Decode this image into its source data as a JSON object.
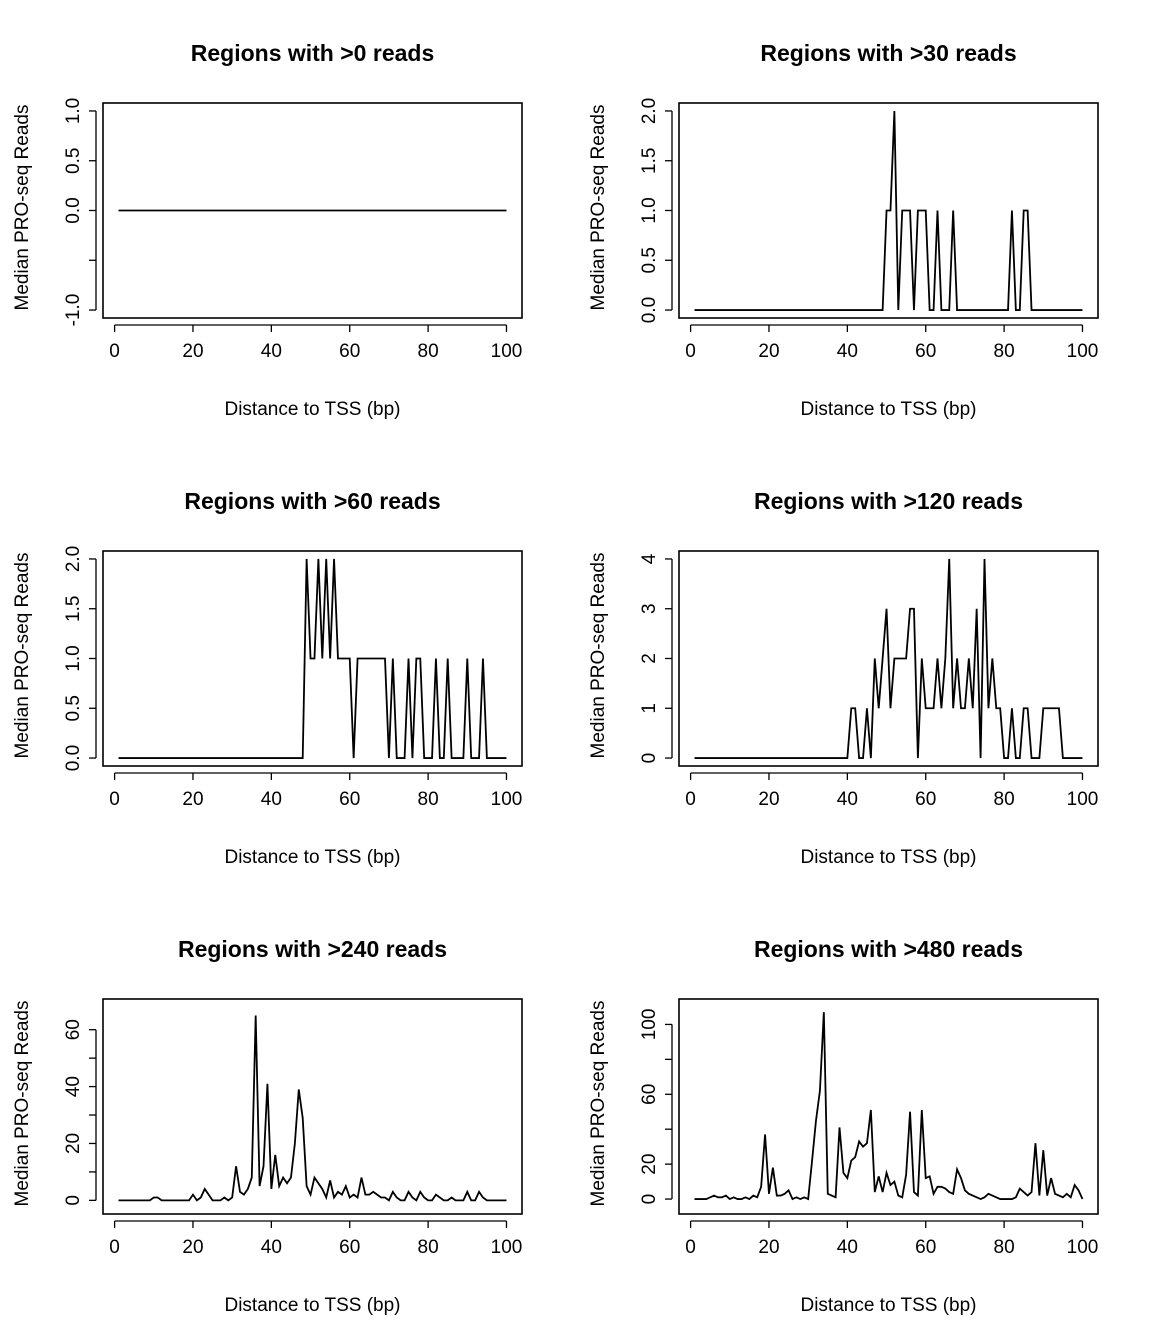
{
  "chart_data": [
    {
      "type": "line",
      "title": "Regions with >0 reads",
      "xlabel": "Distance to TSS (bp)",
      "ylabel": "Median PRO-seq Reads",
      "xlim": [
        1,
        100
      ],
      "ylim": [
        -1,
        1
      ],
      "xticks": [
        0,
        20,
        40,
        60,
        80,
        100
      ],
      "xtick_labels": [
        "0",
        "20",
        "40",
        "60",
        "80",
        "100"
      ],
      "yticks": [
        -1,
        -0.5,
        0,
        0.5,
        1
      ],
      "ytick_labels": [
        "-1.0",
        "",
        "0.0",
        "0.5",
        "1.0"
      ],
      "series": [
        {
          "x": [
            1,
            100
          ],
          "y": [
            0,
            0
          ]
        }
      ]
    },
    {
      "type": "line",
      "title": "Regions with >30 reads",
      "xlabel": "Distance to TSS (bp)",
      "ylabel": "Median PRO-seq Reads",
      "xlim": [
        1,
        100
      ],
      "ylim": [
        0,
        2
      ],
      "xticks": [
        0,
        20,
        40,
        60,
        80,
        100
      ],
      "xtick_labels": [
        "0",
        "20",
        "40",
        "60",
        "80",
        "100"
      ],
      "yticks": [
        0,
        0.5,
        1,
        1.5,
        2
      ],
      "ytick_labels": [
        "0.0",
        "0.5",
        "1.0",
        "1.5",
        "2.0"
      ],
      "series": [
        {
          "x": [
            1,
            49,
            50,
            51,
            52,
            53,
            54,
            55,
            56,
            57,
            58,
            59,
            60,
            61,
            62,
            63,
            64,
            65,
            66,
            67,
            68,
            81,
            82,
            83,
            84,
            85,
            86,
            87,
            100
          ],
          "y": [
            0,
            0,
            1,
            1,
            2,
            0,
            1,
            1,
            1,
            0,
            1,
            1,
            1,
            0,
            0,
            1,
            0,
            0,
            0,
            1,
            0,
            0,
            1,
            0,
            0,
            1,
            1,
            0,
            0
          ]
        }
      ]
    },
    {
      "type": "line",
      "title": "Regions with >60 reads",
      "xlabel": "Distance to TSS (bp)",
      "ylabel": "Median PRO-seq Reads",
      "xlim": [
        1,
        100
      ],
      "ylim": [
        0,
        2
      ],
      "xticks": [
        0,
        20,
        40,
        60,
        80,
        100
      ],
      "xtick_labels": [
        "0",
        "20",
        "40",
        "60",
        "80",
        "100"
      ],
      "yticks": [
        0,
        0.5,
        1,
        1.5,
        2
      ],
      "ytick_labels": [
        "0.0",
        "0.5",
        "1.0",
        "1.5",
        "2.0"
      ],
      "series": [
        {
          "x": [
            1,
            48,
            49,
            50,
            51,
            52,
            53,
            54,
            55,
            56,
            57,
            58,
            59,
            60,
            61,
            62,
            63,
            64,
            65,
            66,
            67,
            68,
            69,
            70,
            71,
            72,
            73,
            74,
            75,
            76,
            77,
            78,
            79,
            80,
            81,
            82,
            83,
            84,
            85,
            86,
            87,
            88,
            89,
            90,
            91,
            92,
            93,
            94,
            95,
            96,
            100
          ],
          "y": [
            0,
            0,
            2,
            1,
            1,
            2,
            1,
            2,
            1,
            2,
            1,
            1,
            1,
            1,
            0,
            1,
            1,
            1,
            1,
            1,
            1,
            1,
            1,
            0,
            1,
            0,
            0,
            0,
            1,
            0,
            1,
            1,
            0,
            0,
            0,
            1,
            0,
            0,
            1,
            0,
            0,
            0,
            0,
            1,
            0,
            0,
            0,
            1,
            0,
            0,
            0
          ]
        }
      ]
    },
    {
      "type": "line",
      "title": "Regions with >120 reads",
      "xlabel": "Distance to TSS (bp)",
      "ylabel": "Median PRO-seq Reads",
      "xlim": [
        1,
        100
      ],
      "ylim": [
        0,
        4
      ],
      "xticks": [
        0,
        20,
        40,
        60,
        80,
        100
      ],
      "xtick_labels": [
        "0",
        "20",
        "40",
        "60",
        "80",
        "100"
      ],
      "yticks": [
        0,
        1,
        2,
        3,
        4
      ],
      "ytick_labels": [
        "0",
        "1",
        "2",
        "3",
        "4"
      ],
      "series": [
        {
          "x": [
            1,
            40,
            41,
            42,
            43,
            44,
            45,
            46,
            47,
            48,
            49,
            50,
            51,
            52,
            53,
            54,
            55,
            56,
            57,
            58,
            59,
            60,
            61,
            62,
            63,
            64,
            65,
            66,
            67,
            68,
            69,
            70,
            71,
            72,
            73,
            74,
            75,
            76,
            77,
            78,
            79,
            80,
            81,
            82,
            83,
            84,
            85,
            86,
            87,
            88,
            89,
            90,
            91,
            92,
            93,
            94,
            95,
            100
          ],
          "y": [
            0,
            0,
            1,
            1,
            0,
            0,
            1,
            0,
            2,
            1,
            2,
            3,
            1,
            2,
            2,
            2,
            2,
            3,
            3,
            0,
            2,
            1,
            1,
            1,
            2,
            1,
            2,
            4,
            1,
            2,
            1,
            1,
            2,
            1,
            3,
            0,
            4,
            1,
            2,
            1,
            1,
            0,
            0,
            1,
            0,
            0,
            1,
            1,
            0,
            0,
            0,
            1,
            1,
            1,
            1,
            1,
            0,
            0
          ]
        }
      ]
    },
    {
      "type": "line",
      "title": "Regions with >240 reads",
      "xlabel": "Distance to TSS (bp)",
      "ylabel": "Median PRO-seq Reads",
      "xlim": [
        1,
        100
      ],
      "ylim": [
        -2,
        68
      ],
      "xticks": [
        0,
        20,
        40,
        60,
        80,
        100
      ],
      "xtick_labels": [
        "0",
        "20",
        "40",
        "60",
        "80",
        "100"
      ],
      "yticks": [
        0,
        10,
        20,
        30,
        40,
        50,
        60
      ],
      "ytick_labels": [
        "0",
        "",
        "20",
        "",
        "40",
        "",
        "60"
      ],
      "series": [
        {
          "x": [
            1,
            9,
            10,
            11,
            12,
            19,
            20,
            21,
            22,
            23,
            24,
            25,
            26,
            27,
            28,
            29,
            30,
            31,
            32,
            33,
            34,
            35,
            36,
            37,
            38,
            39,
            40,
            41,
            42,
            43,
            44,
            45,
            46,
            47,
            48,
            49,
            50,
            51,
            52,
            53,
            54,
            55,
            56,
            57,
            58,
            59,
            60,
            61,
            62,
            63,
            64,
            65,
            66,
            67,
            68,
            69,
            70,
            71,
            72,
            73,
            74,
            75,
            76,
            77,
            78,
            79,
            80,
            81,
            82,
            83,
            84,
            85,
            86,
            87,
            88,
            89,
            90,
            91,
            92,
            93,
            94,
            95,
            96,
            97,
            98,
            99,
            100
          ],
          "y": [
            0,
            0,
            1,
            1,
            0,
            0,
            2,
            0,
            1,
            4,
            2,
            0,
            0,
            0,
            1,
            0,
            1,
            12,
            3,
            2,
            4,
            8,
            65,
            5,
            12,
            41,
            4,
            16,
            5,
            8,
            6,
            8,
            20,
            39,
            29,
            5,
            2,
            8,
            6,
            4,
            1,
            7,
            1,
            3,
            2,
            5,
            1,
            2,
            1,
            8,
            2,
            2,
            3,
            2,
            1,
            1,
            0,
            3,
            1,
            0,
            0,
            3,
            1,
            0,
            3,
            1,
            0,
            0,
            2,
            1,
            0,
            0,
            1,
            0,
            0,
            0,
            3,
            0,
            0,
            3,
            1,
            0,
            0,
            0,
            0,
            0,
            0
          ]
        }
      ]
    },
    {
      "type": "line",
      "title": "Regions with >480 reads",
      "xlabel": "Distance to TSS (bp)",
      "ylabel": "Median PRO-seq Reads",
      "xlim": [
        1,
        100
      ],
      "ylim": [
        -4,
        110
      ],
      "xticks": [
        0,
        20,
        40,
        60,
        80,
        100
      ],
      "xtick_labels": [
        "0",
        "20",
        "40",
        "60",
        "80",
        "100"
      ],
      "yticks": [
        0,
        20,
        40,
        60,
        80,
        100
      ],
      "ytick_labels": [
        "0",
        "20",
        "",
        "60",
        "",
        "100"
      ],
      "series": [
        {
          "x": [
            1,
            4,
            5,
            6,
            7,
            8,
            9,
            10,
            11,
            12,
            13,
            14,
            15,
            16,
            17,
            18,
            19,
            20,
            21,
            22,
            23,
            24,
            25,
            26,
            27,
            28,
            29,
            30,
            31,
            32,
            33,
            34,
            35,
            36,
            37,
            38,
            39,
            40,
            41,
            42,
            43,
            44,
            45,
            46,
            47,
            48,
            49,
            50,
            51,
            52,
            53,
            54,
            55,
            56,
            57,
            58,
            59,
            60,
            61,
            62,
            63,
            64,
            65,
            66,
            67,
            68,
            69,
            70,
            71,
            72,
            73,
            74,
            75,
            76,
            77,
            78,
            79,
            80,
            81,
            82,
            83,
            84,
            85,
            86,
            87,
            88,
            89,
            90,
            91,
            92,
            93,
            94,
            95,
            96,
            97,
            98,
            99,
            100
          ],
          "y": [
            0,
            0,
            1,
            2,
            1,
            1,
            2,
            0,
            1,
            0,
            0,
            1,
            0,
            2,
            1,
            7,
            37,
            3,
            18,
            2,
            2,
            3,
            5,
            0,
            1,
            0,
            1,
            0,
            22,
            45,
            62,
            107,
            3,
            2,
            1,
            41,
            15,
            12,
            22,
            24,
            33,
            30,
            32,
            51,
            4,
            13,
            4,
            15,
            8,
            10,
            2,
            1,
            14,
            50,
            4,
            2,
            51,
            12,
            13,
            3,
            7,
            7,
            6,
            4,
            3,
            17,
            12,
            5,
            3,
            2,
            1,
            0,
            1,
            3,
            2,
            1,
            0,
            0,
            0,
            0,
            1,
            6,
            4,
            2,
            4,
            32,
            2,
            28,
            2,
            12,
            3,
            2,
            1,
            3,
            1,
            8,
            5,
            0
          ]
        }
      ]
    }
  ]
}
